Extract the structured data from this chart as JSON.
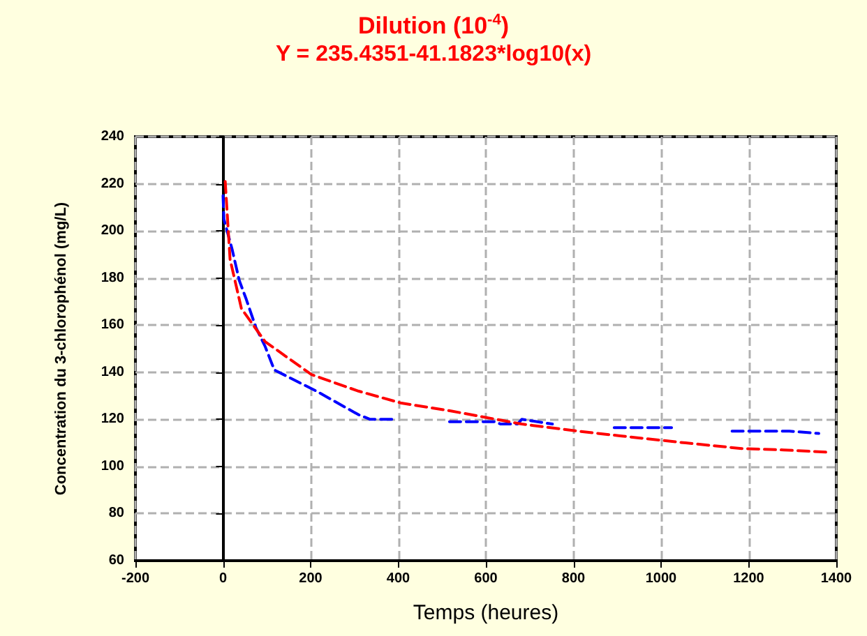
{
  "chart_data": {
    "type": "line",
    "title": "Dilution (10$^{-4}$)",
    "subtitle": "Y = 235.4351-41.1823*log10(x)",
    "xlabel": "Temps (heures)",
    "ylabel": "Concentration du 3-chlorophénol (mg/L)",
    "xlim": [
      -200,
      1400
    ],
    "xticks": [
      -200,
      0,
      200,
      400,
      600,
      800,
      1000,
      1200,
      1400
    ],
    "ylim": [
      60,
      240
    ],
    "yticks": [
      60,
      80,
      100,
      120,
      140,
      160,
      180,
      200,
      220,
      240
    ],
    "grid": true,
    "marker": "none",
    "line_style": "dashed",
    "series": [
      {
        "color": "#0000ff",
        "x": [
          0,
          2,
          21,
          37,
          53,
          75,
          96,
          117,
          170,
          213,
          309,
          336,
          395,
          null,
          517,
          619,
          634,
          672,
          682,
          752,
          null,
          893,
          1024,
          null,
          1162,
          1293,
          1360
        ],
        "values": [
          215,
          205,
          192,
          179,
          171,
          159,
          151,
          141,
          136,
          132,
          122,
          120,
          120,
          null,
          119,
          119,
          118,
          118,
          120,
          118,
          null,
          116.5,
          116.5,
          null,
          115,
          115,
          114
        ]
      },
      {
        "color": "#ff0000",
        "x": [
          5,
          16,
          42,
          96,
          202,
          309,
          405,
          522,
          682,
          810,
          906,
          1056,
          1184,
          1280,
          1386
        ],
        "values": [
          221,
          188,
          167,
          153,
          139,
          132,
          127,
          123.5,
          118,
          115,
          113,
          110,
          107.6,
          107,
          106
        ]
      }
    ]
  }
}
